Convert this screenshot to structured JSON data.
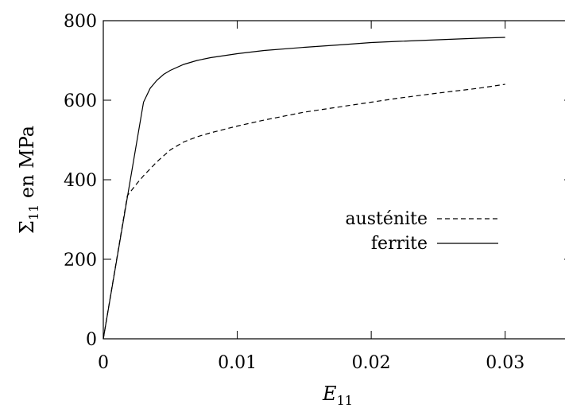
{
  "chart_data": {
    "type": "line",
    "title": "",
    "xlabel": "E11",
    "xlabel_parts": {
      "base": "E",
      "sub": "11"
    },
    "ylabel": "Σ11 en MPa",
    "ylabel_parts": {
      "base": "Σ",
      "sub": "11",
      "rest": " en MPa"
    },
    "xlim": [
      0,
      0.035
    ],
    "ylim": [
      0,
      800
    ],
    "xticks": [
      0,
      0.01,
      0.02,
      0.03
    ],
    "xtick_labels": [
      "0",
      "0.01",
      "0.02",
      "0.03"
    ],
    "yticks": [
      0,
      200,
      400,
      600,
      800
    ],
    "ytick_labels": [
      "0",
      "200",
      "400",
      "600",
      "800"
    ],
    "grid": false,
    "legend_position": "center-right",
    "series": [
      {
        "name": "austénite",
        "style": "dashed",
        "color": "#000000",
        "x": [
          0,
          0.0018,
          0.0025,
          0.003,
          0.004,
          0.005,
          0.006,
          0.007,
          0.008,
          0.01,
          0.012,
          0.015,
          0.018,
          0.02,
          0.022,
          0.025,
          0.028,
          0.03
        ],
        "y": [
          0,
          360,
          390,
          410,
          445,
          475,
          495,
          508,
          518,
          535,
          550,
          570,
          585,
          595,
          605,
          618,
          630,
          640
        ]
      },
      {
        "name": "ferrite",
        "style": "solid",
        "color": "#000000",
        "x": [
          0,
          0.003,
          0.0035,
          0.004,
          0.0045,
          0.005,
          0.006,
          0.007,
          0.008,
          0.01,
          0.012,
          0.015,
          0.018,
          0.02,
          0.022,
          0.025,
          0.028,
          0.03
        ],
        "y": [
          0,
          595,
          630,
          650,
          665,
          675,
          690,
          700,
          707,
          717,
          725,
          733,
          740,
          745,
          748,
          752,
          756,
          758
        ]
      }
    ]
  }
}
